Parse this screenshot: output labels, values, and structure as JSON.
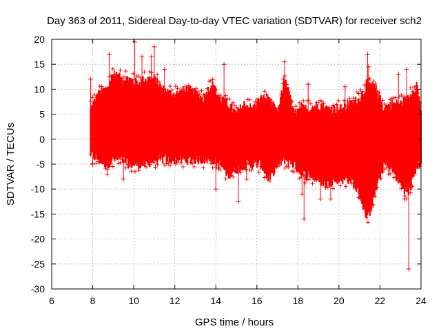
{
  "chart_data": {
    "type": "scatter",
    "title": "Day 363 of 2011, Sidereal Day-to-day VTEC variation (SDTVAR) for receiver sch2",
    "xlabel": "GPS time / hours",
    "ylabel": "SDTVAR / TECUs",
    "xlim": [
      6,
      24
    ],
    "ylim": [
      -30,
      20
    ],
    "xticks": [
      "6",
      "8",
      "10",
      "12",
      "14",
      "16",
      "18",
      "20",
      "22",
      "24"
    ],
    "yticks": [
      "20",
      "15",
      "10",
      "5",
      "0",
      "-5",
      "-10",
      "-15",
      "-20",
      "-25",
      "-30"
    ],
    "grid": true,
    "series": [
      {
        "name": "SDTVAR",
        "color": "#ff0000",
        "marker": "+",
        "envelope": {
          "x": [
            7.9,
            8.3,
            8.7,
            9.0,
            9.4,
            9.8,
            10.2,
            10.6,
            11.0,
            11.4,
            11.8,
            12.2,
            12.6,
            13.0,
            13.4,
            13.8,
            14.2,
            14.6,
            15.0,
            15.4,
            15.8,
            16.2,
            16.6,
            17.0,
            17.4,
            17.8,
            18.2,
            18.6,
            19.0,
            19.4,
            19.8,
            20.2,
            20.6,
            21.0,
            21.4,
            21.8,
            22.2,
            22.6,
            23.0,
            23.4,
            23.8,
            24.0
          ],
          "upper": [
            6,
            9,
            10,
            13,
            12,
            12,
            11,
            12,
            12,
            10,
            9,
            9,
            10,
            9,
            8,
            11,
            8,
            7,
            5,
            7,
            6,
            8,
            8,
            5,
            12,
            5,
            6,
            6,
            7,
            6,
            6,
            6,
            7,
            8,
            11,
            10,
            6,
            7,
            7,
            8,
            11,
            6
          ],
          "lower": [
            -3,
            -4,
            -5,
            -4,
            -4,
            -5,
            -5,
            -5,
            -4,
            -4,
            -4,
            -4,
            -4,
            -4,
            -4,
            -4,
            -5,
            -7,
            -6,
            -5,
            -5,
            -5,
            -8,
            -5,
            -4,
            -5,
            -7,
            -7,
            -8,
            -9,
            -8,
            -8,
            -8,
            -11,
            -16,
            -10,
            -5,
            -6,
            -9,
            -11,
            -5,
            -5
          ]
        },
        "outliers": [
          {
            "x": 7.9,
            "y": 12
          },
          {
            "x": 8.0,
            "y": -5
          },
          {
            "x": 8.8,
            "y": 17
          },
          {
            "x": 8.7,
            "y": -7
          },
          {
            "x": 9.5,
            "y": -8
          },
          {
            "x": 10.05,
            "y": 19.5
          },
          {
            "x": 10.4,
            "y": 16.5
          },
          {
            "x": 10.85,
            "y": 16.5
          },
          {
            "x": 11.0,
            "y": 18.5
          },
          {
            "x": 11.5,
            "y": 14
          },
          {
            "x": 11.3,
            "y": -4
          },
          {
            "x": 12.5,
            "y": 10.5
          },
          {
            "x": 14.0,
            "y": -10
          },
          {
            "x": 14.4,
            "y": 15
          },
          {
            "x": 15.1,
            "y": -12.5
          },
          {
            "x": 15.5,
            "y": -8
          },
          {
            "x": 17.35,
            "y": 15.5
          },
          {
            "x": 17.3,
            "y": 12
          },
          {
            "x": 18.2,
            "y": -11
          },
          {
            "x": 18.3,
            "y": -16
          },
          {
            "x": 18.4,
            "y": -8
          },
          {
            "x": 18.5,
            "y": 11
          },
          {
            "x": 19.1,
            "y": -12
          },
          {
            "x": 19.6,
            "y": -12
          },
          {
            "x": 20.3,
            "y": 10.5
          },
          {
            "x": 21.4,
            "y": 17
          },
          {
            "x": 21.45,
            "y": 14.5
          },
          {
            "x": 22.9,
            "y": 13
          },
          {
            "x": 23.3,
            "y": 14
          },
          {
            "x": 23.4,
            "y": -26
          },
          {
            "x": 23.2,
            "y": -12
          }
        ]
      }
    ]
  }
}
